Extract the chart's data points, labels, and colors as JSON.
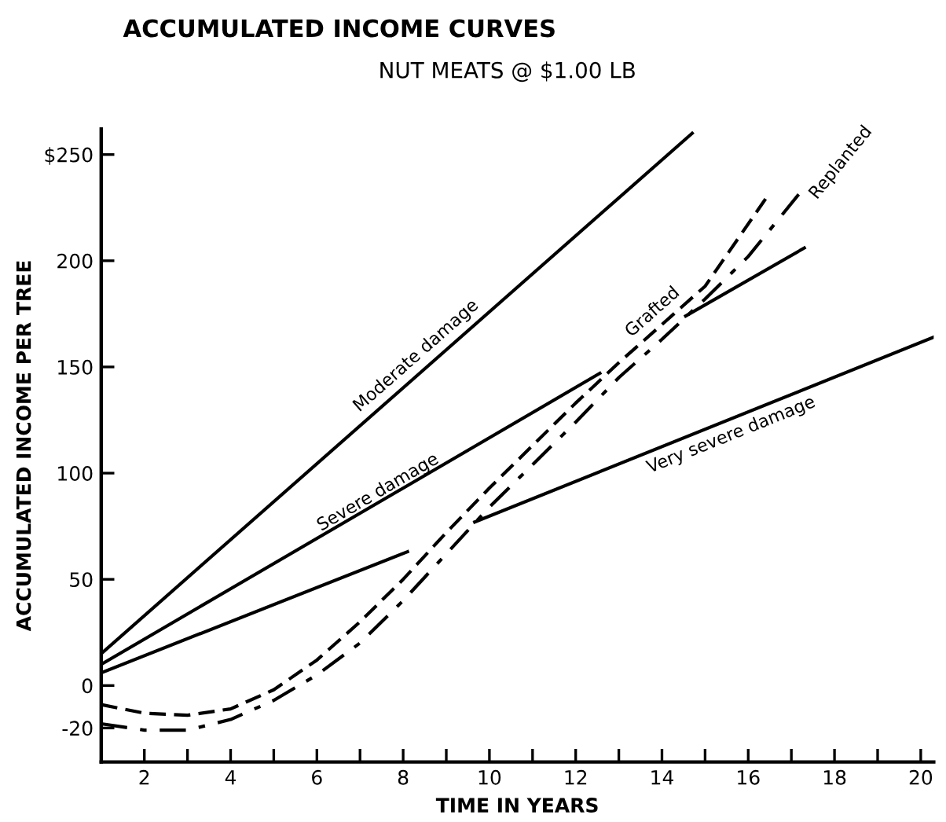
{
  "chart_data": {
    "type": "line",
    "title": "ACCUMULATED INCOME CURVES",
    "subtitle": "NUT MEATS @ $1.00 LB",
    "xlabel": "TIME IN YEARS",
    "ylabel": "ACCUMULATED INCOME PER TREE",
    "xlim": [
      1,
      20.3
    ],
    "ylim": [
      -36,
      262
    ],
    "xticks": [
      2,
      {
        "value": 3,
        "label": null
      },
      4,
      {
        "value": 5,
        "label": null
      },
      6,
      {
        "value": 7,
        "label": null
      },
      8,
      {
        "value": 9,
        "label": null
      },
      10,
      {
        "value": 11,
        "label": null
      },
      12,
      {
        "value": 13,
        "label": null
      },
      14,
      {
        "value": 15,
        "label": null
      },
      16,
      {
        "value": 17,
        "label": null
      },
      18,
      {
        "value": 19,
        "label": null
      },
      20
    ],
    "yticks": [
      -20,
      0,
      50,
      100,
      150,
      200,
      {
        "value": 250,
        "label": "$250"
      }
    ],
    "grid": false,
    "legend": false,
    "marker": "none",
    "series": [
      {
        "name": "Moderate damage",
        "color": "#000000",
        "line_style": "solid",
        "x": [
          1,
          14.7
        ],
        "values": [
          15,
          260
        ]
      },
      {
        "name": "Severe damage",
        "color": "#000000",
        "line_style": "solid",
        "x": [
          1,
          12.56,
          13.5,
          14.55,
          17.3
        ],
        "values": [
          10,
          147,
          null,
          174,
          206
        ]
      },
      {
        "name": "Very severe damage",
        "color": "#000000",
        "line_style": "solid",
        "x": [
          1,
          8.1,
          8.9,
          9.66,
          20.3
        ],
        "values": [
          6,
          63,
          null,
          77,
          164
        ]
      },
      {
        "name": "Grafted",
        "color": "#000000",
        "line_style": "dashed",
        "x": [
          1,
          2,
          3,
          4,
          5,
          6,
          7,
          8,
          9,
          10,
          11,
          12,
          13,
          14,
          15,
          16.5
        ],
        "values": [
          -9,
          -13,
          -14,
          -11,
          -2,
          12,
          30,
          50,
          72,
          93,
          113,
          133,
          152,
          170,
          188,
          232
        ]
      },
      {
        "name": "Replanted",
        "color": "#000000",
        "line_style": "dashdot",
        "x": [
          1,
          2,
          3,
          4,
          5,
          6,
          7,
          8,
          9,
          10,
          11,
          12,
          13,
          14,
          15,
          16,
          17.2
        ],
        "values": [
          -18,
          -21,
          -21,
          -16,
          -7,
          5,
          20,
          40,
          62,
          84,
          104,
          124,
          145,
          163,
          182,
          202,
          232
        ]
      }
    ]
  }
}
